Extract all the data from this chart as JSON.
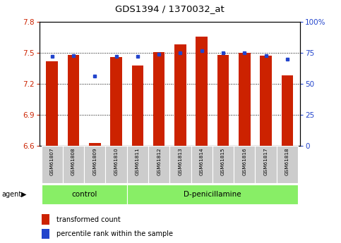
{
  "title": "GDS1394 / 1370032_at",
  "samples": [
    "GSM61807",
    "GSM61808",
    "GSM61809",
    "GSM61810",
    "GSM61811",
    "GSM61812",
    "GSM61813",
    "GSM61814",
    "GSM61815",
    "GSM61816",
    "GSM61817",
    "GSM61818"
  ],
  "transformed_count": [
    7.42,
    7.48,
    6.63,
    7.46,
    7.38,
    7.51,
    7.58,
    7.66,
    7.48,
    7.5,
    7.47,
    7.28
  ],
  "percentile_rank": [
    72,
    73,
    56,
    72,
    72,
    74,
    75,
    77,
    75,
    75,
    73,
    70
  ],
  "bar_bottom": 6.6,
  "ylim_left": [
    6.6,
    7.8
  ],
  "ylim_right": [
    0,
    100
  ],
  "yticks_left": [
    6.6,
    6.9,
    7.2,
    7.5,
    7.8
  ],
  "yticks_right": [
    0,
    25,
    50,
    75,
    100
  ],
  "ytick_labels_right": [
    "0",
    "25",
    "50",
    "75",
    "100%"
  ],
  "hlines": [
    6.9,
    7.2,
    7.5
  ],
  "bar_color": "#cc2200",
  "blue_color": "#2244cc",
  "control_label": "control",
  "treatment_label": "D-penicillamine",
  "n_control": 4,
  "agent_label": "agent",
  "legend_red": "transformed count",
  "legend_blue": "percentile rank within the sample",
  "plot_bg": "#ffffff",
  "green_color": "#88ee66",
  "label_bg": "#cccccc",
  "bar_width": 0.55
}
